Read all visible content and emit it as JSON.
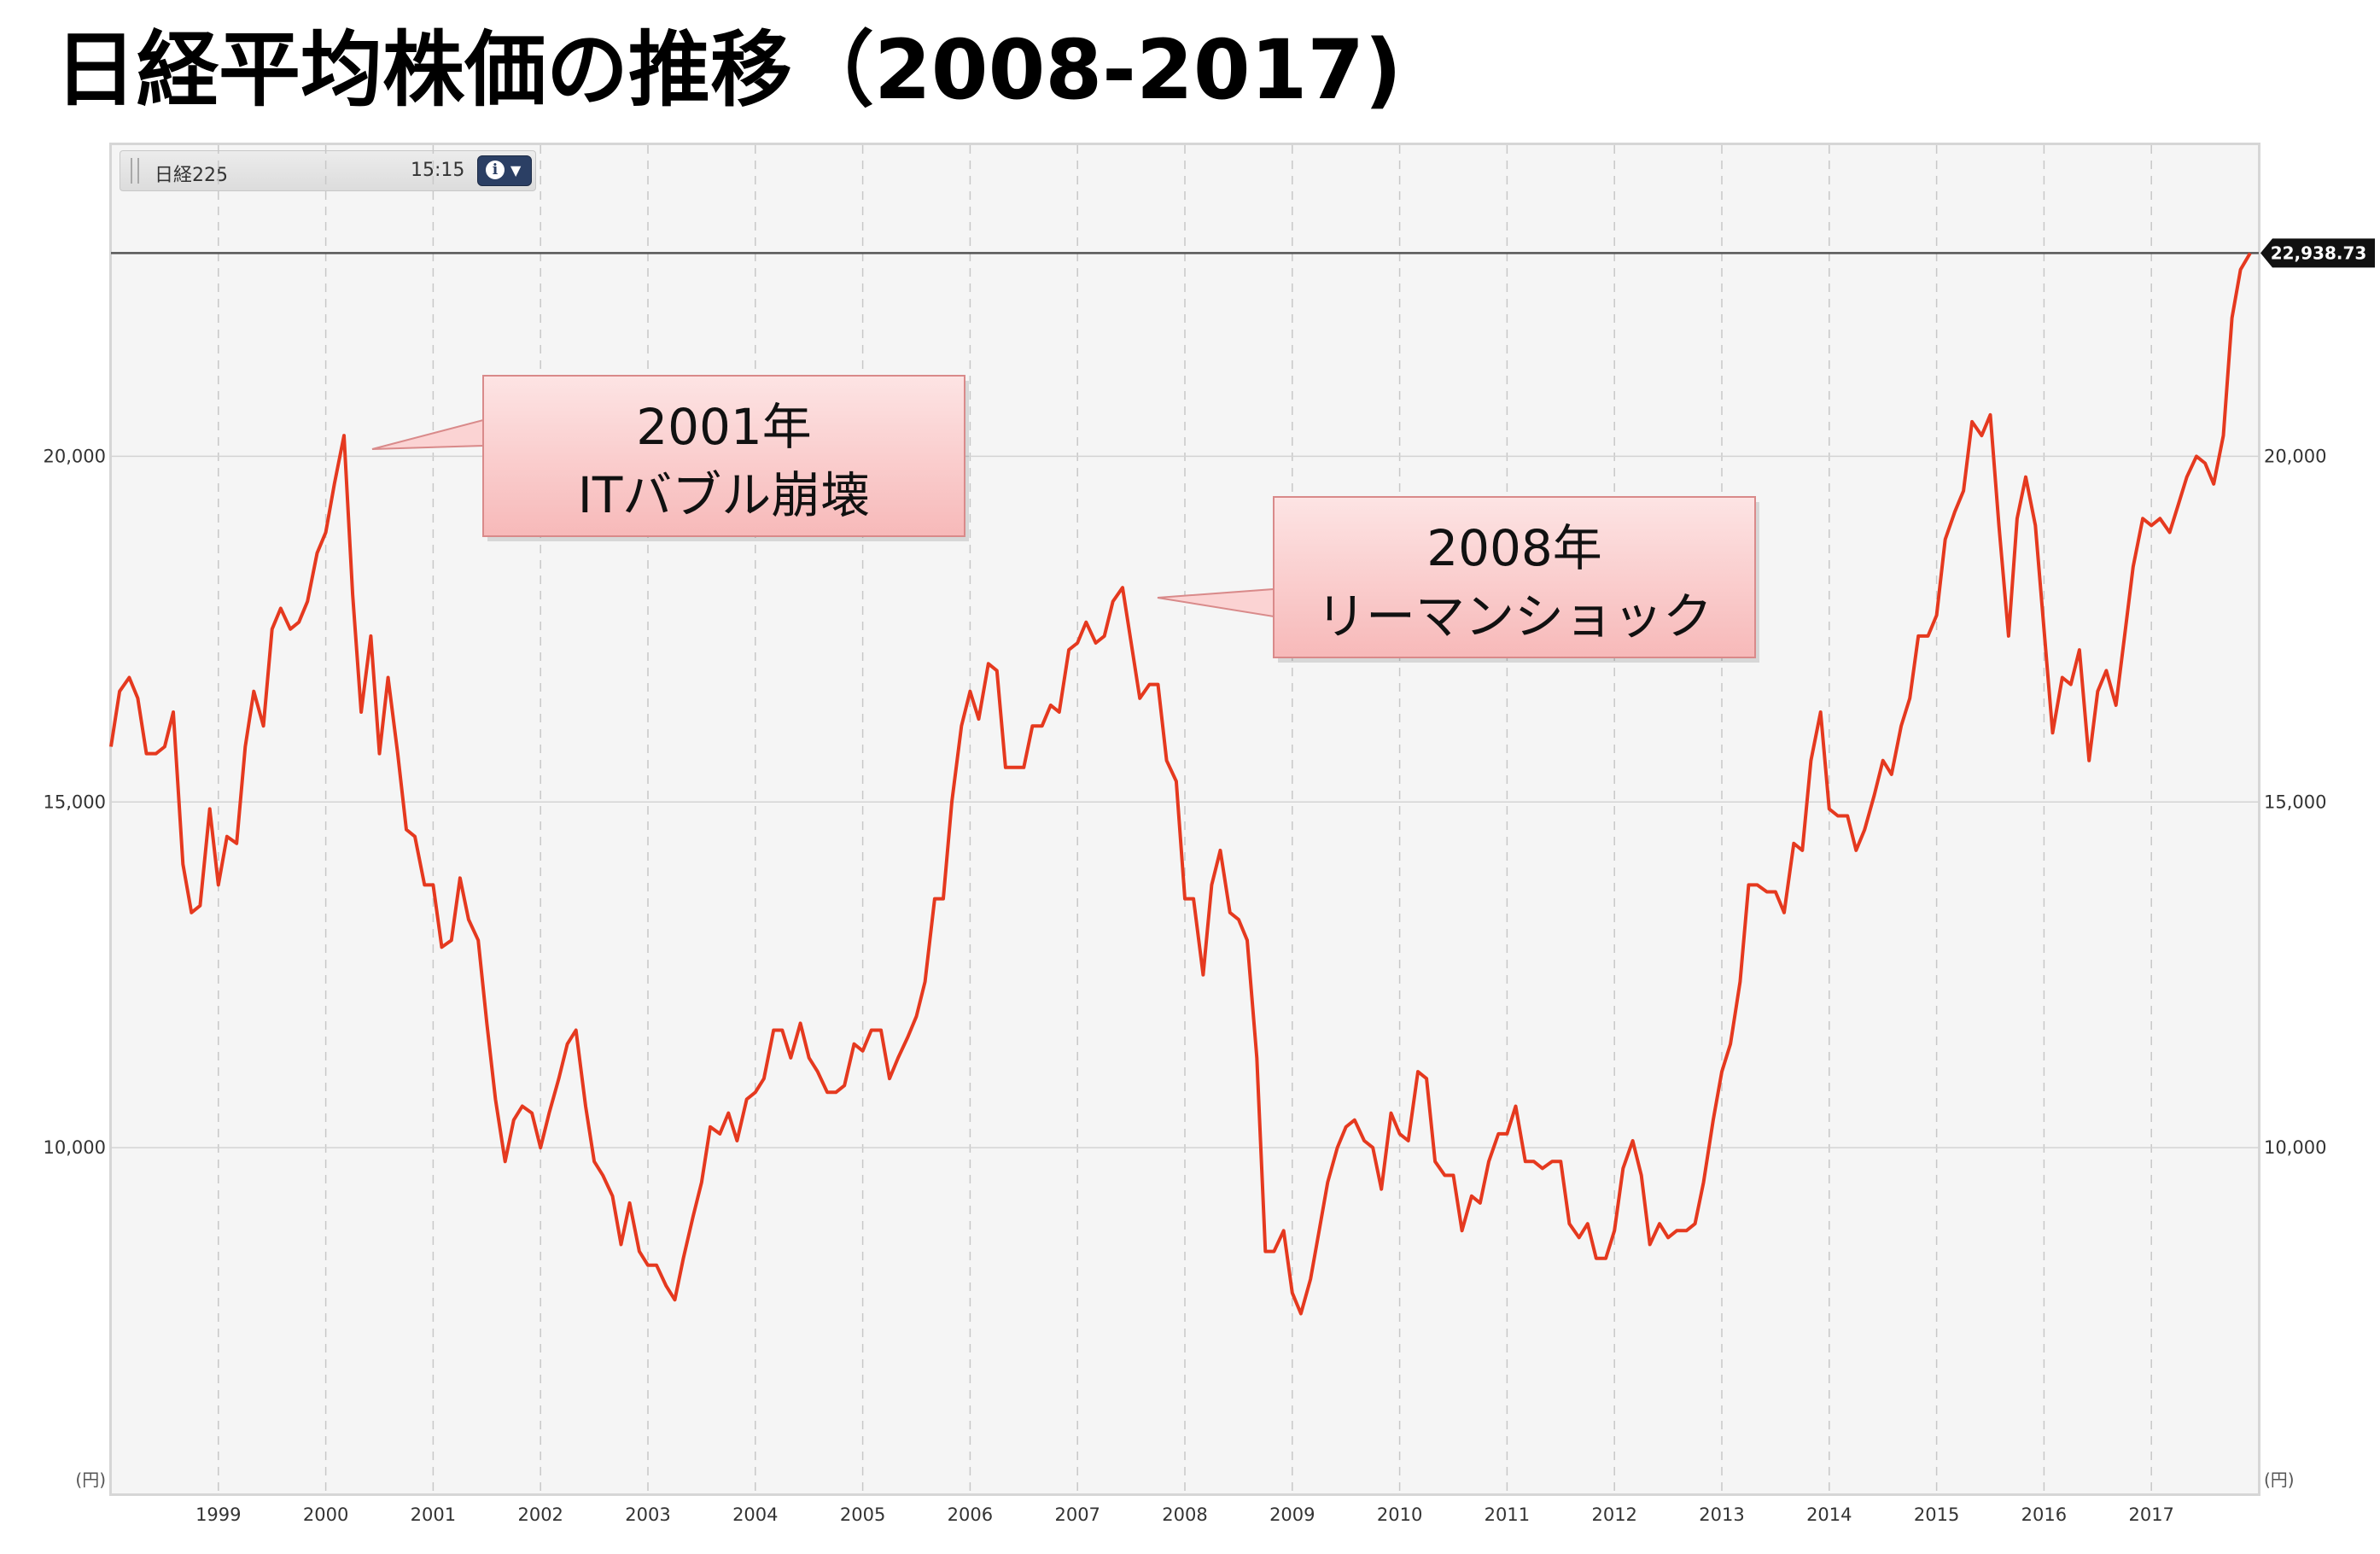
{
  "title": "日経平均株価の推移（2008-2017)",
  "info_bar": {
    "symbol": "日経225",
    "time": "15:15",
    "info_icon": "info-icon",
    "dropdown_icon": "chevron-down-icon"
  },
  "chart_data": {
    "type": "line",
    "title": "日経平均株価の推移（2008-2017)",
    "xlabel": "",
    "ylabel": "",
    "y_unit": "(円)",
    "xlim": [
      1998.0,
      2018.0
    ],
    "ylim": [
      5000,
      24500
    ],
    "x_ticks": [
      1999,
      2000,
      2001,
      2002,
      2003,
      2004,
      2005,
      2006,
      2007,
      2008,
      2009,
      2010,
      2011,
      2012,
      2013,
      2014,
      2015,
      2016,
      2017
    ],
    "y_ticks": [
      {
        "value": 10000,
        "label": "10,000"
      },
      {
        "value": 15000,
        "label": "15,000"
      },
      {
        "value": 20000,
        "label": "20,000"
      }
    ],
    "grid": true,
    "line_color": "#e5391f",
    "reference_line": {
      "value": 22938.73,
      "label": "22,938.73"
    },
    "series": [
      {
        "name": "日経225",
        "x": [
          1998.0,
          1998.08,
          1998.17,
          1998.25,
          1998.33,
          1998.42,
          1998.5,
          1998.58,
          1998.67,
          1998.75,
          1998.83,
          1998.92,
          1999.0,
          1999.08,
          1999.17,
          1999.25,
          1999.33,
          1999.42,
          1999.5,
          1999.58,
          1999.67,
          1999.75,
          1999.83,
          1999.92,
          2000.0,
          2000.08,
          2000.17,
          2000.25,
          2000.33,
          2000.42,
          2000.5,
          2000.58,
          2000.67,
          2000.75,
          2000.83,
          2000.92,
          2001.0,
          2001.08,
          2001.17,
          2001.25,
          2001.33,
          2001.42,
          2001.5,
          2001.58,
          2001.67,
          2001.75,
          2001.83,
          2001.92,
          2002.0,
          2002.08,
          2002.17,
          2002.25,
          2002.33,
          2002.42,
          2002.5,
          2002.58,
          2002.67,
          2002.75,
          2002.83,
          2002.92,
          2003.0,
          2003.08,
          2003.17,
          2003.25,
          2003.33,
          2003.42,
          2003.5,
          2003.58,
          2003.67,
          2003.75,
          2003.83,
          2003.92,
          2004.0,
          2004.08,
          2004.17,
          2004.25,
          2004.33,
          2004.42,
          2004.5,
          2004.58,
          2004.67,
          2004.75,
          2004.83,
          2004.92,
          2005.0,
          2005.08,
          2005.17,
          2005.25,
          2005.33,
          2005.42,
          2005.5,
          2005.58,
          2005.67,
          2005.75,
          2005.83,
          2005.92,
          2006.0,
          2006.08,
          2006.17,
          2006.25,
          2006.33,
          2006.42,
          2006.5,
          2006.58,
          2006.67,
          2006.75,
          2006.83,
          2006.92,
          2007.0,
          2007.08,
          2007.17,
          2007.25,
          2007.33,
          2007.42,
          2007.5,
          2007.58,
          2007.67,
          2007.75,
          2007.83,
          2007.92,
          2008.0,
          2008.08,
          2008.17,
          2008.25,
          2008.33,
          2008.42,
          2008.5,
          2008.58,
          2008.67,
          2008.75,
          2008.83,
          2008.92,
          2009.0,
          2009.08,
          2009.17,
          2009.25,
          2009.33,
          2009.42,
          2009.5,
          2009.58,
          2009.67,
          2009.75,
          2009.83,
          2009.92,
          2010.0,
          2010.08,
          2010.17,
          2010.25,
          2010.33,
          2010.42,
          2010.5,
          2010.58,
          2010.67,
          2010.75,
          2010.83,
          2010.92,
          2011.0,
          2011.08,
          2011.17,
          2011.25,
          2011.33,
          2011.42,
          2011.5,
          2011.58,
          2011.67,
          2011.75,
          2011.83,
          2011.92,
          2012.0,
          2012.08,
          2012.17,
          2012.25,
          2012.33,
          2012.42,
          2012.5,
          2012.58,
          2012.67,
          2012.75,
          2012.83,
          2012.92,
          2013.0,
          2013.08,
          2013.17,
          2013.25,
          2013.33,
          2013.42,
          2013.5,
          2013.58,
          2013.67,
          2013.75,
          2013.83,
          2013.92,
          2014.0,
          2014.08,
          2014.17,
          2014.25,
          2014.33,
          2014.42,
          2014.5,
          2014.58,
          2014.67,
          2014.75,
          2014.83,
          2014.92,
          2015.0,
          2015.08,
          2015.17,
          2015.25,
          2015.33,
          2015.42,
          2015.5,
          2015.58,
          2015.67,
          2015.75,
          2015.83,
          2015.92,
          2016.0,
          2016.08,
          2016.17,
          2016.25,
          2016.33,
          2016.42,
          2016.5,
          2016.58,
          2016.67,
          2016.75,
          2016.83,
          2016.92,
          2017.0,
          2017.08,
          2017.17,
          2017.25,
          2017.33,
          2017.42,
          2017.5,
          2017.58,
          2017.67,
          2017.75,
          2017.83,
          2017.92
        ],
        "values": [
          15800,
          16600,
          16800,
          16500,
          15700,
          15700,
          15800,
          16300,
          14100,
          13400,
          13500,
          14900,
          13800,
          14500,
          14400,
          15800,
          16600,
          16100,
          17500,
          17800,
          17500,
          17600,
          17900,
          18600,
          18900,
          19600,
          20300,
          18000,
          16300,
          17400,
          15700,
          16800,
          15700,
          14600,
          14500,
          13800,
          13800,
          12900,
          13000,
          13900,
          13300,
          13000,
          11800,
          10700,
          9800,
          10400,
          10600,
          10500,
          10000,
          10500,
          11000,
          11500,
          11700,
          10600,
          9800,
          9600,
          9300,
          8600,
          9200,
          8500,
          8300,
          8300,
          8000,
          7800,
          8400,
          9000,
          9500,
          10300,
          10200,
          10500,
          10100,
          10700,
          10800,
          11000,
          11700,
          11700,
          11300,
          11800,
          11300,
          11100,
          10800,
          10800,
          10900,
          11500,
          11400,
          11700,
          11700,
          11000,
          11300,
          11600,
          11900,
          12400,
          13600,
          13600,
          15000,
          16100,
          16600,
          16200,
          17000,
          16900,
          15500,
          15500,
          15500,
          16100,
          16100,
          16400,
          16300,
          17200,
          17300,
          17600,
          17300,
          17400,
          17900,
          18100,
          17300,
          16500,
          16700,
          16700,
          15600,
          15300,
          13600,
          13600,
          12500,
          13800,
          14300,
          13400,
          13300,
          13000,
          11300,
          8500,
          8500,
          8800,
          7900,
          7600,
          8100,
          8800,
          9500,
          10000,
          10300,
          10400,
          10100,
          10000,
          9400,
          10500,
          10200,
          10100,
          11100,
          11000,
          9800,
          9600,
          9600,
          8800,
          9300,
          9200,
          9800,
          10200,
          10200,
          10600,
          9800,
          9800,
          9700,
          9800,
          9800,
          8900,
          8700,
          8900,
          8400,
          8400,
          8800,
          9700,
          10100,
          9600,
          8600,
          8900,
          8700,
          8800,
          8800,
          8900,
          9500,
          10400,
          11100,
          11500,
          12400,
          13800,
          13800,
          13700,
          13700,
          13400,
          14400,
          14300,
          15600,
          16300,
          14900,
          14800,
          14800,
          14300,
          14600,
          15100,
          15600,
          15400,
          16100,
          16500,
          17400,
          17400,
          17700,
          18800,
          19200,
          19500,
          20500,
          20300,
          20600,
          19000,
          17400,
          19100,
          19700,
          19000,
          17500,
          16000,
          16800,
          16700,
          17200,
          15600,
          16600,
          16900,
          16400,
          17400,
          18400,
          19100,
          19000,
          19100,
          18900,
          19300,
          19700,
          20000,
          19900,
          19600,
          20300,
          22000,
          22700,
          22938
        ]
      }
    ],
    "annotations": [
      {
        "line1": "2001年",
        "line2": "ITバブル崩壊"
      },
      {
        "line1": "2008年",
        "line2": "リーマンショック"
      }
    ]
  }
}
